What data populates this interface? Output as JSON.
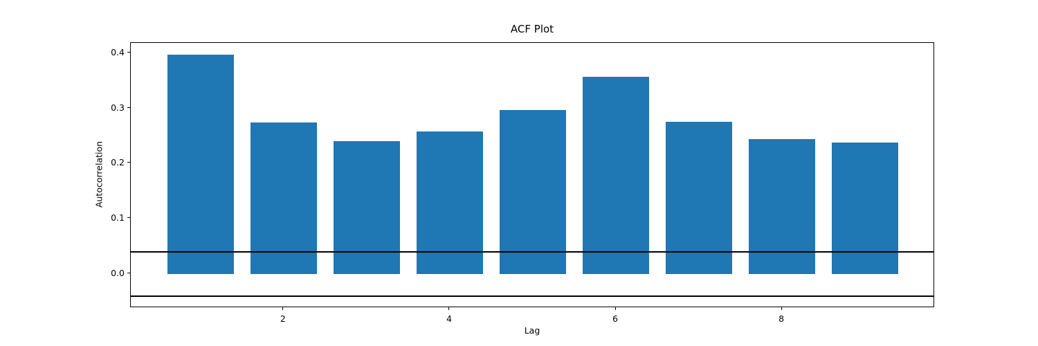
{
  "figure": {
    "background": "#ffffff"
  },
  "chart_data": {
    "type": "bar",
    "title": "ACF Plot",
    "xlabel": "Lag",
    "ylabel": "Autocorrelation",
    "categories": [
      1,
      2,
      3,
      4,
      5,
      6,
      7,
      8,
      9
    ],
    "values": [
      0.397,
      0.274,
      0.24,
      0.257,
      0.296,
      0.357,
      0.275,
      0.244,
      0.237
    ],
    "bar_color": "#1f77b4",
    "bar_width": 0.8,
    "conf_lines": [
      0.04,
      -0.04
    ],
    "conf_line_color": "#000000",
    "axis_color": "#000000",
    "xlim": [
      0.16,
      9.84
    ],
    "ylim": [
      -0.0618,
      0.4178
    ],
    "xticks": [
      2,
      4,
      6,
      8
    ],
    "xtick_labels": [
      "2",
      "4",
      "6",
      "8"
    ],
    "yticks": [
      0.0,
      0.1,
      0.2,
      0.3,
      0.4
    ],
    "ytick_labels": [
      "0.0",
      "0.1",
      "0.2",
      "0.3",
      "0.4"
    ],
    "grid": false,
    "legend_position": "none"
  }
}
